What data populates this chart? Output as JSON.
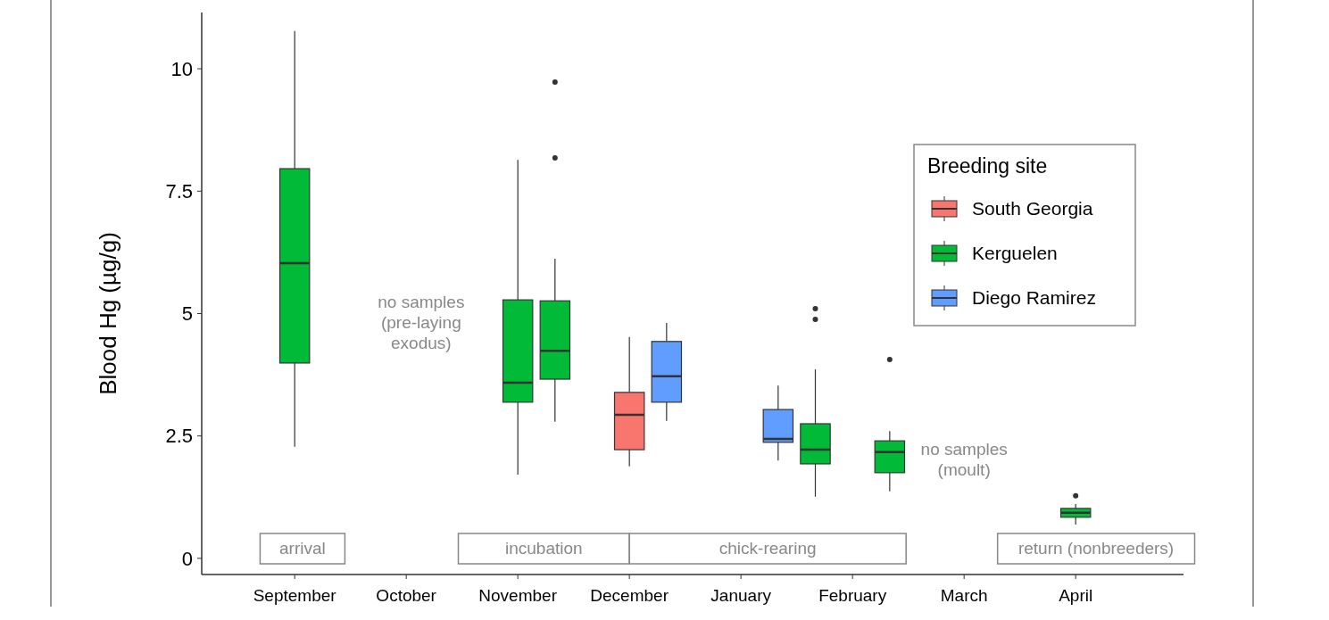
{
  "chart_data": {
    "type": "box",
    "ylabel": "Blood Hg (µg/g)",
    "legend_title": "Breeding site",
    "legend": "top right",
    "grid": false,
    "ylim": [
      -0.33,
      11.15
    ],
    "yticks": [
      0,
      2.5,
      5,
      7.5,
      10
    ],
    "categories": [
      null,
      null,
      "September",
      null,
      null,
      "October",
      null,
      null,
      "November",
      null,
      null,
      "December",
      null,
      null,
      "January",
      null,
      null,
      "February",
      null,
      null,
      "March",
      null,
      null,
      "April",
      null,
      null,
      null
    ],
    "series": [
      {
        "name": "South Georgia",
        "color": "#f8766d",
        "boxes": [
          null,
          null,
          null,
          null,
          null,
          null,
          null,
          null,
          null,
          null,
          null,
          {
            "low": 1.88,
            "q1": 2.22,
            "median": 2.93,
            "q3": 3.39,
            "high": 4.52
          },
          null,
          null,
          null,
          null,
          null,
          null,
          null,
          null,
          null,
          null,
          null,
          null,
          null,
          null,
          null
        ]
      },
      {
        "name": "Kerguelen",
        "color": "#00ba38",
        "boxes": [
          null,
          null,
          {
            "low": 2.28,
            "q1": 3.99,
            "median": 6.03,
            "q3": 7.96,
            "high": 10.77
          },
          null,
          null,
          null,
          null,
          null,
          {
            "low": 1.71,
            "q1": 3.19,
            "median": 3.59,
            "q3": 5.28,
            "high": 8.14
          },
          {
            "low": 2.79,
            "q1": 3.66,
            "median": 4.24,
            "q3": 5.26,
            "high": 6.12,
            "outliers": [
              9.73,
              8.18
            ]
          },
          null,
          null,
          null,
          null,
          null,
          null,
          {
            "low": 1.26,
            "q1": 1.93,
            "median": 2.22,
            "q3": 2.75,
            "high": 3.86,
            "outliers": [
              5.1,
              4.88
            ]
          },
          null,
          {
            "low": 1.37,
            "q1": 1.75,
            "median": 2.17,
            "q3": 2.4,
            "high": 2.6,
            "outliers": [
              4.06
            ]
          },
          null,
          null,
          null,
          null,
          {
            "low": 0.69,
            "q1": 0.84,
            "median": 0.93,
            "q3": 1.02,
            "high": 1.11,
            "outliers": [
              1.28
            ]
          },
          null,
          null,
          null
        ]
      },
      {
        "name": "Diego Ramirez",
        "color": "#619cff",
        "boxes": [
          null,
          null,
          null,
          null,
          null,
          null,
          null,
          null,
          null,
          null,
          null,
          null,
          {
            "low": 2.81,
            "q1": 3.19,
            "median": 3.72,
            "q3": 4.43,
            "high": 4.81
          },
          null,
          null,
          {
            "low": 2.0,
            "q1": 2.37,
            "median": 2.44,
            "q3": 3.04,
            "high": 3.53
          },
          null,
          null,
          null,
          null,
          null,
          null,
          null,
          null,
          null,
          null,
          null
        ]
      }
    ],
    "annotations": [
      "arrival",
      "incubation",
      "chick-rearing",
      "return (nonbreeders)",
      "no samples\n(pre-laying\nexodus)",
      "no samples\n(moult)"
    ]
  }
}
